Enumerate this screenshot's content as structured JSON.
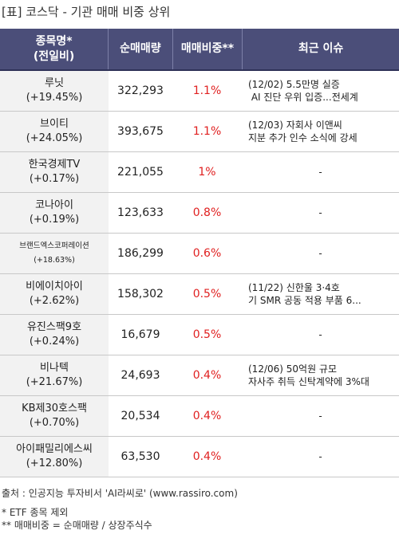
{
  "title": "[표] 코스닥 - 기관 매매 비중 상위",
  "headers": {
    "col1": [
      "종목명*",
      "(전일비)"
    ],
    "col2": "순매매량",
    "col3": "매매비중**",
    "col4": "최근 이슈"
  },
  "rows": [
    {
      "name": "루닛",
      "change": "(+19.45%)",
      "volume": "322,293",
      "ratio": "1.1%",
      "issue": "(12/02) 5.5만명 실증\n AI 진단 우위 입증...전세계"
    },
    {
      "name": "브이티",
      "change": "(+24.05%)",
      "volume": "393,675",
      "ratio": "1.1%",
      "issue": "(12/03) 자회사 이앤씨\n지분 추가 인수 소식에 강세"
    },
    {
      "name": "한국경제TV",
      "change": "(+0.17%)",
      "volume": "221,055",
      "ratio": "1%",
      "issue": "-"
    },
    {
      "name": "코나아이",
      "change": "(+0.19%)",
      "volume": "123,633",
      "ratio": "0.8%",
      "issue": "-"
    },
    {
      "name": "브랜드엑스코퍼레이션",
      "change": "(+18.63%)",
      "volume": "186,299",
      "ratio": "0.6%",
      "issue": "-",
      "small": true
    },
    {
      "name": "비에이치아이",
      "change": "(+2.62%)",
      "volume": "158,302",
      "ratio": "0.5%",
      "issue": "(11/22) 신한울 3·4호\n기 SMR 공동 적용 부품 6..."
    },
    {
      "name": "유진스팩9호",
      "change": "(+0.24%)",
      "volume": "16,679",
      "ratio": "0.5%",
      "issue": "-"
    },
    {
      "name": "비나텍",
      "change": "(+21.67%)",
      "volume": "24,693",
      "ratio": "0.4%",
      "issue": "(12/06) 50억원 규모\n자사주 취득 신탁계약에 3%대"
    },
    {
      "name": "KB제30호스팩",
      "change": "(+0.70%)",
      "volume": "20,534",
      "ratio": "0.4%",
      "issue": "-"
    },
    {
      "name": "아이패밀리에스씨",
      "change": "(+12.80%)",
      "volume": "63,530",
      "ratio": "0.4%",
      "issue": "-"
    }
  ],
  "source": "출처 : 인공지능 투자비서 'AI라씨로' (www.rassiro.com)",
  "notes": [
    "* ETF 종목 제외",
    "** 매매비중 = 순매매량 / 상장주식수"
  ],
  "colors": {
    "header_bg": "#4b4e79",
    "ratio_text": "#e02020",
    "name_bg": "#f2f2f2"
  }
}
